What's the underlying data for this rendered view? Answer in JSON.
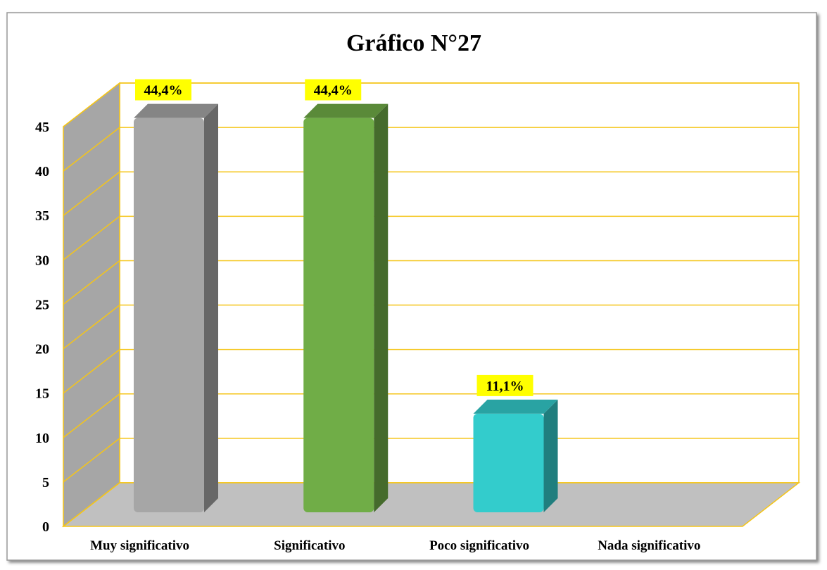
{
  "chart_data": {
    "type": "bar",
    "title": "Gráfico N°27",
    "categories": [
      "Muy significativo",
      "Significativo",
      "Poco significativo",
      "Nada significativo"
    ],
    "values": [
      44.4,
      44.4,
      11.1,
      0
    ],
    "value_labels": [
      "44,4%",
      "44,4%",
      "11,1%",
      null
    ],
    "colors": [
      "#a6a6a6",
      "#70ad47",
      "#33cccc",
      null
    ],
    "ylim": [
      0,
      45
    ],
    "yticks": [
      0,
      5,
      10,
      15,
      20,
      25,
      30,
      35,
      40,
      45
    ],
    "grid": true
  }
}
